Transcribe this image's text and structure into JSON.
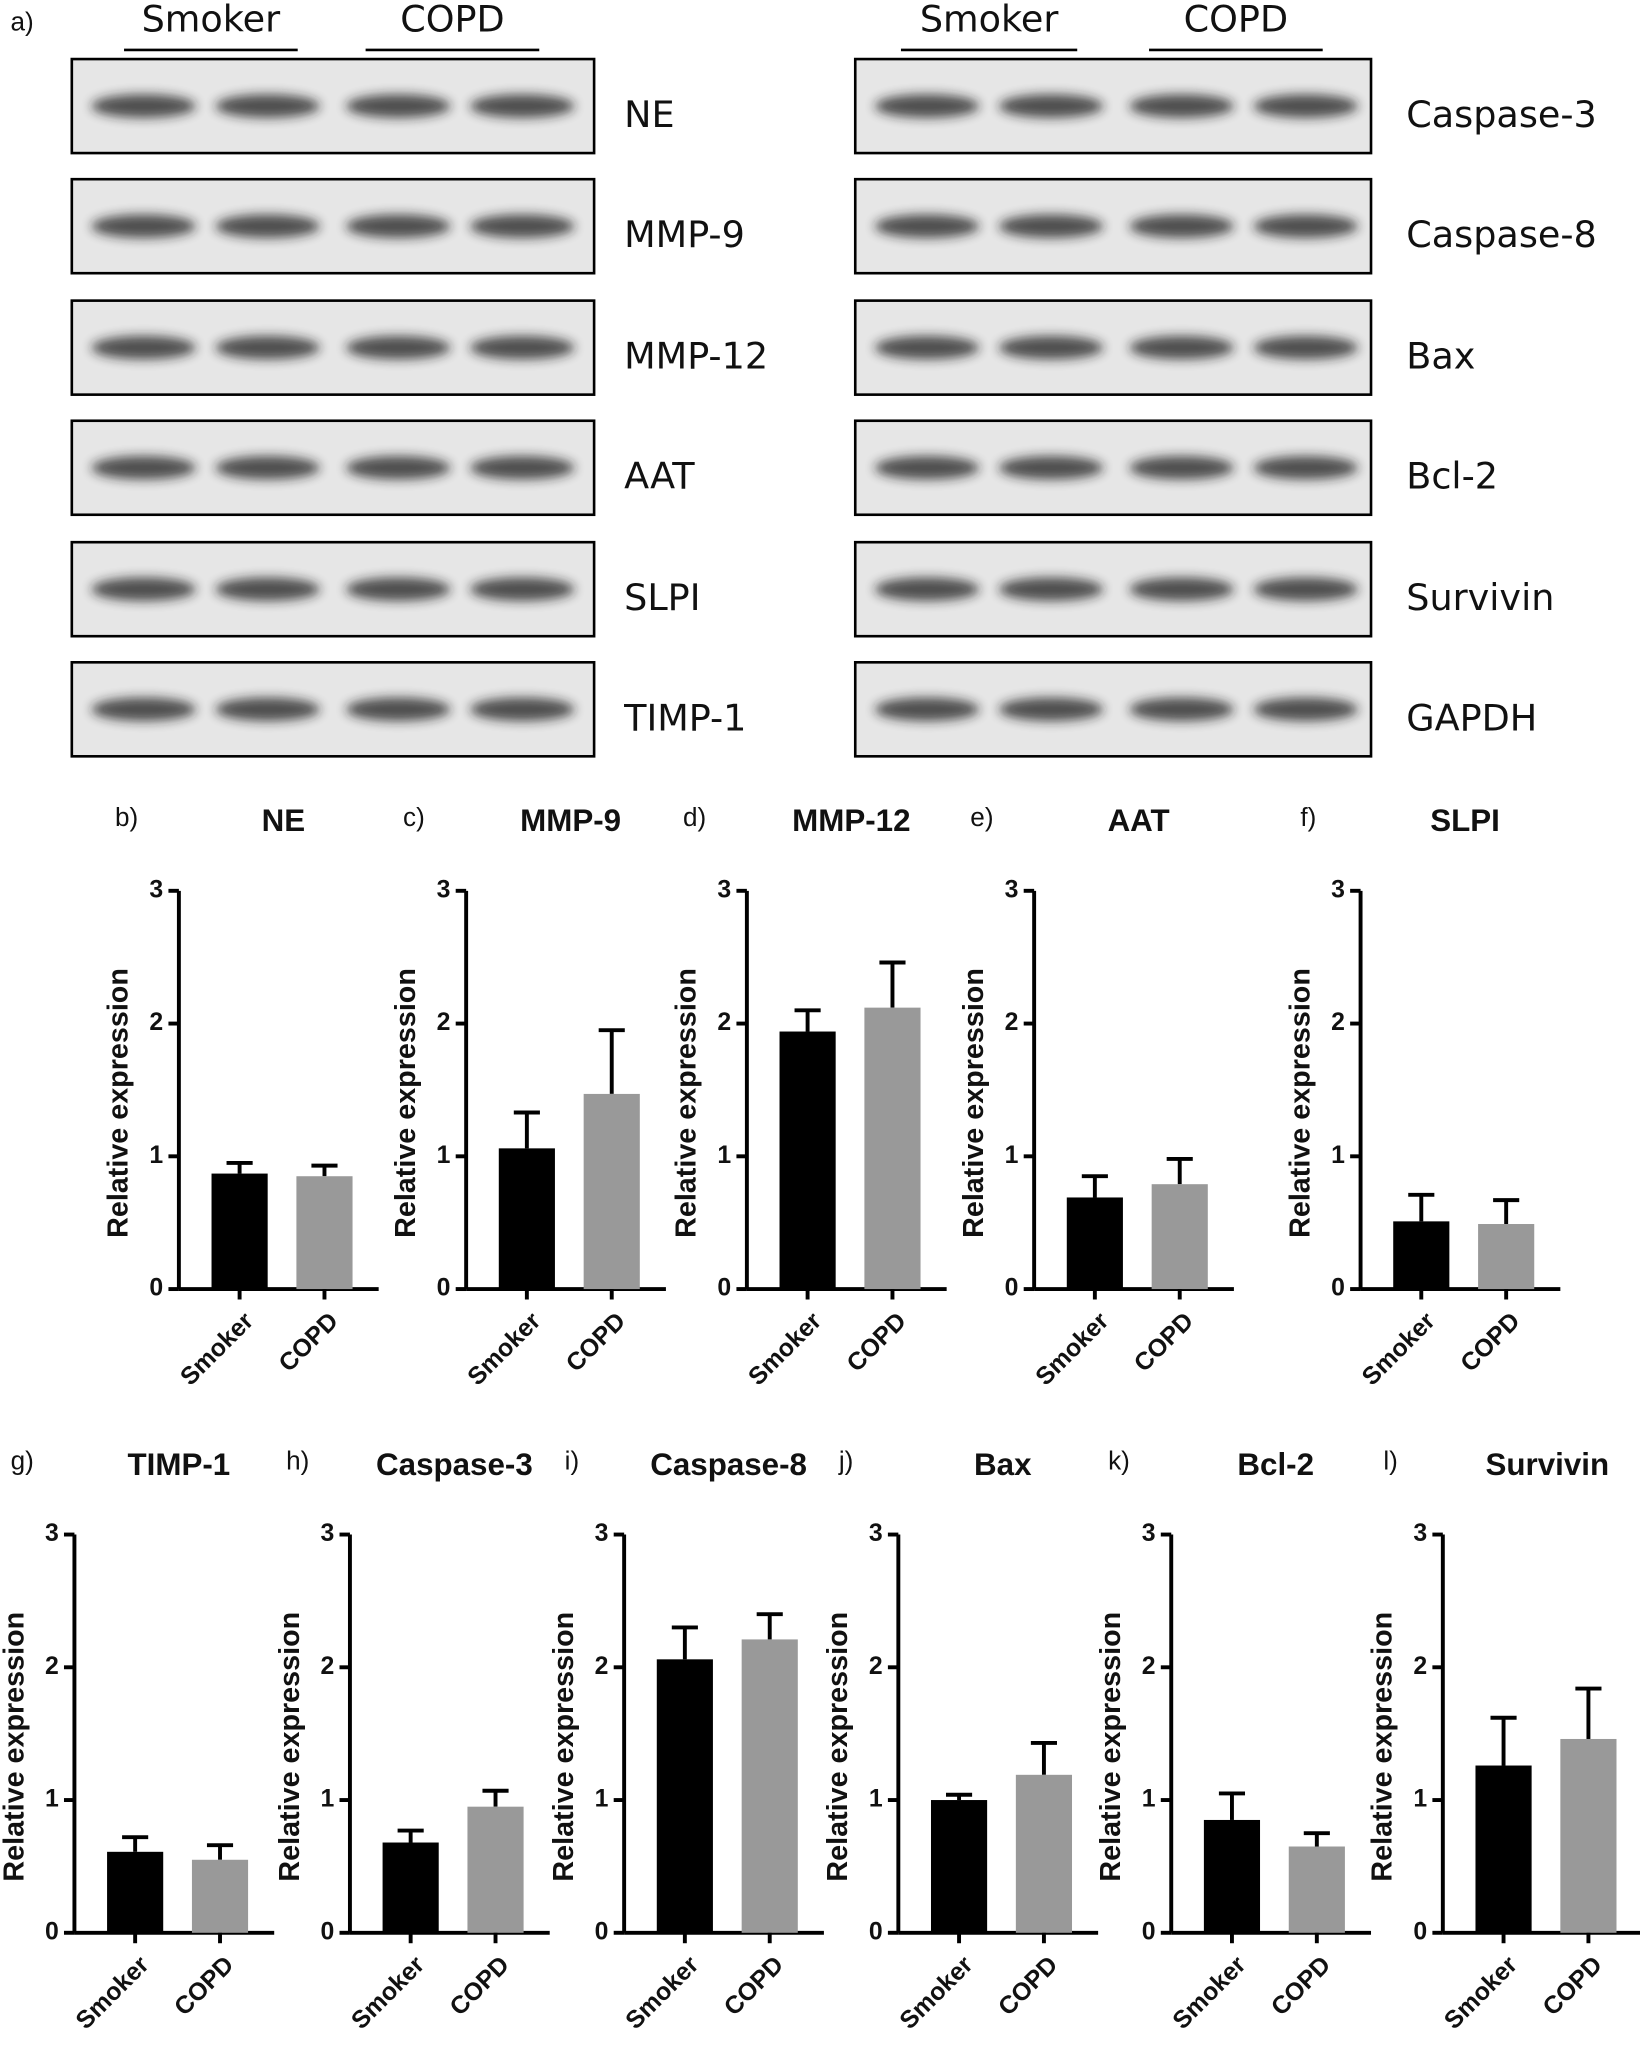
{
  "blot": {
    "panel": "a)",
    "groups_left": [
      "Smoker",
      "COPD"
    ],
    "groups_right": [
      "Smoker",
      "COPD"
    ],
    "left": [
      "NE",
      "MMP-9",
      "MMP-12",
      "AAT",
      "SLPI",
      "TIMP-1"
    ],
    "right": [
      "Caspase-3",
      "Caspase-8",
      "Bax",
      "Bcl-2",
      "Survivin",
      "GAPDH"
    ]
  },
  "chart_data": [
    {
      "type": "bar",
      "panel": "b)",
      "title": "NE",
      "y_label": "Relative expression",
      "categories": [
        "Smoker",
        "COPD"
      ],
      "values": [
        0.87,
        0.85
      ],
      "errors": [
        0.08,
        0.08
      ],
      "colors": [
        "#000000",
        "#999999"
      ],
      "ylim": [
        0,
        3
      ],
      "yticks": [
        0,
        1,
        2,
        3
      ]
    },
    {
      "type": "bar",
      "panel": "c)",
      "title": "MMP-9",
      "y_label": "Relative expression",
      "categories": [
        "Smoker",
        "COPD"
      ],
      "values": [
        1.06,
        1.47
      ],
      "errors": [
        0.27,
        0.48
      ],
      "colors": [
        "#000000",
        "#999999"
      ],
      "ylim": [
        0,
        3
      ],
      "yticks": [
        0,
        1,
        2,
        3
      ]
    },
    {
      "type": "bar",
      "panel": "d)",
      "title": "MMP-12",
      "y_label": "Relative expression",
      "categories": [
        "Smoker",
        "COPD"
      ],
      "values": [
        1.94,
        2.12
      ],
      "errors": [
        0.16,
        0.34
      ],
      "colors": [
        "#000000",
        "#999999"
      ],
      "ylim": [
        0,
        3
      ],
      "yticks": [
        0,
        1,
        2,
        3
      ]
    },
    {
      "type": "bar",
      "panel": "e)",
      "title": "AAT",
      "y_label": "Relative expression",
      "categories": [
        "Smoker",
        "COPD"
      ],
      "values": [
        0.69,
        0.79
      ],
      "errors": [
        0.16,
        0.19
      ],
      "colors": [
        "#000000",
        "#999999"
      ],
      "ylim": [
        0,
        3
      ],
      "yticks": [
        0,
        1,
        2,
        3
      ]
    },
    {
      "type": "bar",
      "panel": "f)",
      "title": "SLPI",
      "y_label": "Relative expression",
      "categories": [
        "Smoker",
        "COPD"
      ],
      "values": [
        0.51,
        0.49
      ],
      "errors": [
        0.2,
        0.18
      ],
      "colors": [
        "#000000",
        "#999999"
      ],
      "ylim": [
        0,
        3
      ],
      "yticks": [
        0,
        1,
        2,
        3
      ]
    },
    {
      "type": "bar",
      "panel": "g)",
      "title": "TIMP-1",
      "y_label": "Relative expression",
      "categories": [
        "Smoker",
        "COPD"
      ],
      "values": [
        0.61,
        0.55
      ],
      "errors": [
        0.11,
        0.11
      ],
      "colors": [
        "#000000",
        "#999999"
      ],
      "ylim": [
        0,
        3
      ],
      "yticks": [
        0,
        1,
        2,
        3
      ]
    },
    {
      "type": "bar",
      "panel": "h)",
      "title": "Caspase-3",
      "y_label": "Relative expression",
      "categories": [
        "Smoker",
        "COPD"
      ],
      "values": [
        0.68,
        0.95
      ],
      "errors": [
        0.09,
        0.12
      ],
      "colors": [
        "#000000",
        "#999999"
      ],
      "ylim": [
        0,
        3
      ],
      "yticks": [
        0,
        1,
        2,
        3
      ]
    },
    {
      "type": "bar",
      "panel": "i)",
      "title": "Caspase-8",
      "y_label": "Relative expression",
      "categories": [
        "Smoker",
        "COPD"
      ],
      "values": [
        2.06,
        2.21
      ],
      "errors": [
        0.24,
        0.19
      ],
      "colors": [
        "#000000",
        "#999999"
      ],
      "ylim": [
        0,
        3
      ],
      "yticks": [
        0,
        1,
        2,
        3
      ]
    },
    {
      "type": "bar",
      "panel": "j)",
      "title": "Bax",
      "y_label": "Relative expression",
      "categories": [
        "Smoker",
        "COPD"
      ],
      "values": [
        1.0,
        1.19
      ],
      "errors": [
        0.04,
        0.24
      ],
      "colors": [
        "#000000",
        "#999999"
      ],
      "ylim": [
        0,
        3
      ],
      "yticks": [
        0,
        1,
        2,
        3
      ]
    },
    {
      "type": "bar",
      "panel": "k)",
      "title": "Bcl-2",
      "y_label": "Relative expression",
      "categories": [
        "Smoker",
        "COPD"
      ],
      "values": [
        0.85,
        0.65
      ],
      "errors": [
        0.2,
        0.1
      ],
      "colors": [
        "#000000",
        "#999999"
      ],
      "ylim": [
        0,
        3
      ],
      "yticks": [
        0,
        1,
        2,
        3
      ]
    },
    {
      "type": "bar",
      "panel": "l)",
      "title": "Survivin",
      "y_label": "Relative expression",
      "categories": [
        "Smoker",
        "COPD"
      ],
      "values": [
        1.26,
        1.46
      ],
      "errors": [
        0.36,
        0.38
      ],
      "colors": [
        "#000000",
        "#999999"
      ],
      "ylim": [
        0,
        3
      ],
      "yticks": [
        0,
        1,
        2,
        3
      ]
    }
  ]
}
